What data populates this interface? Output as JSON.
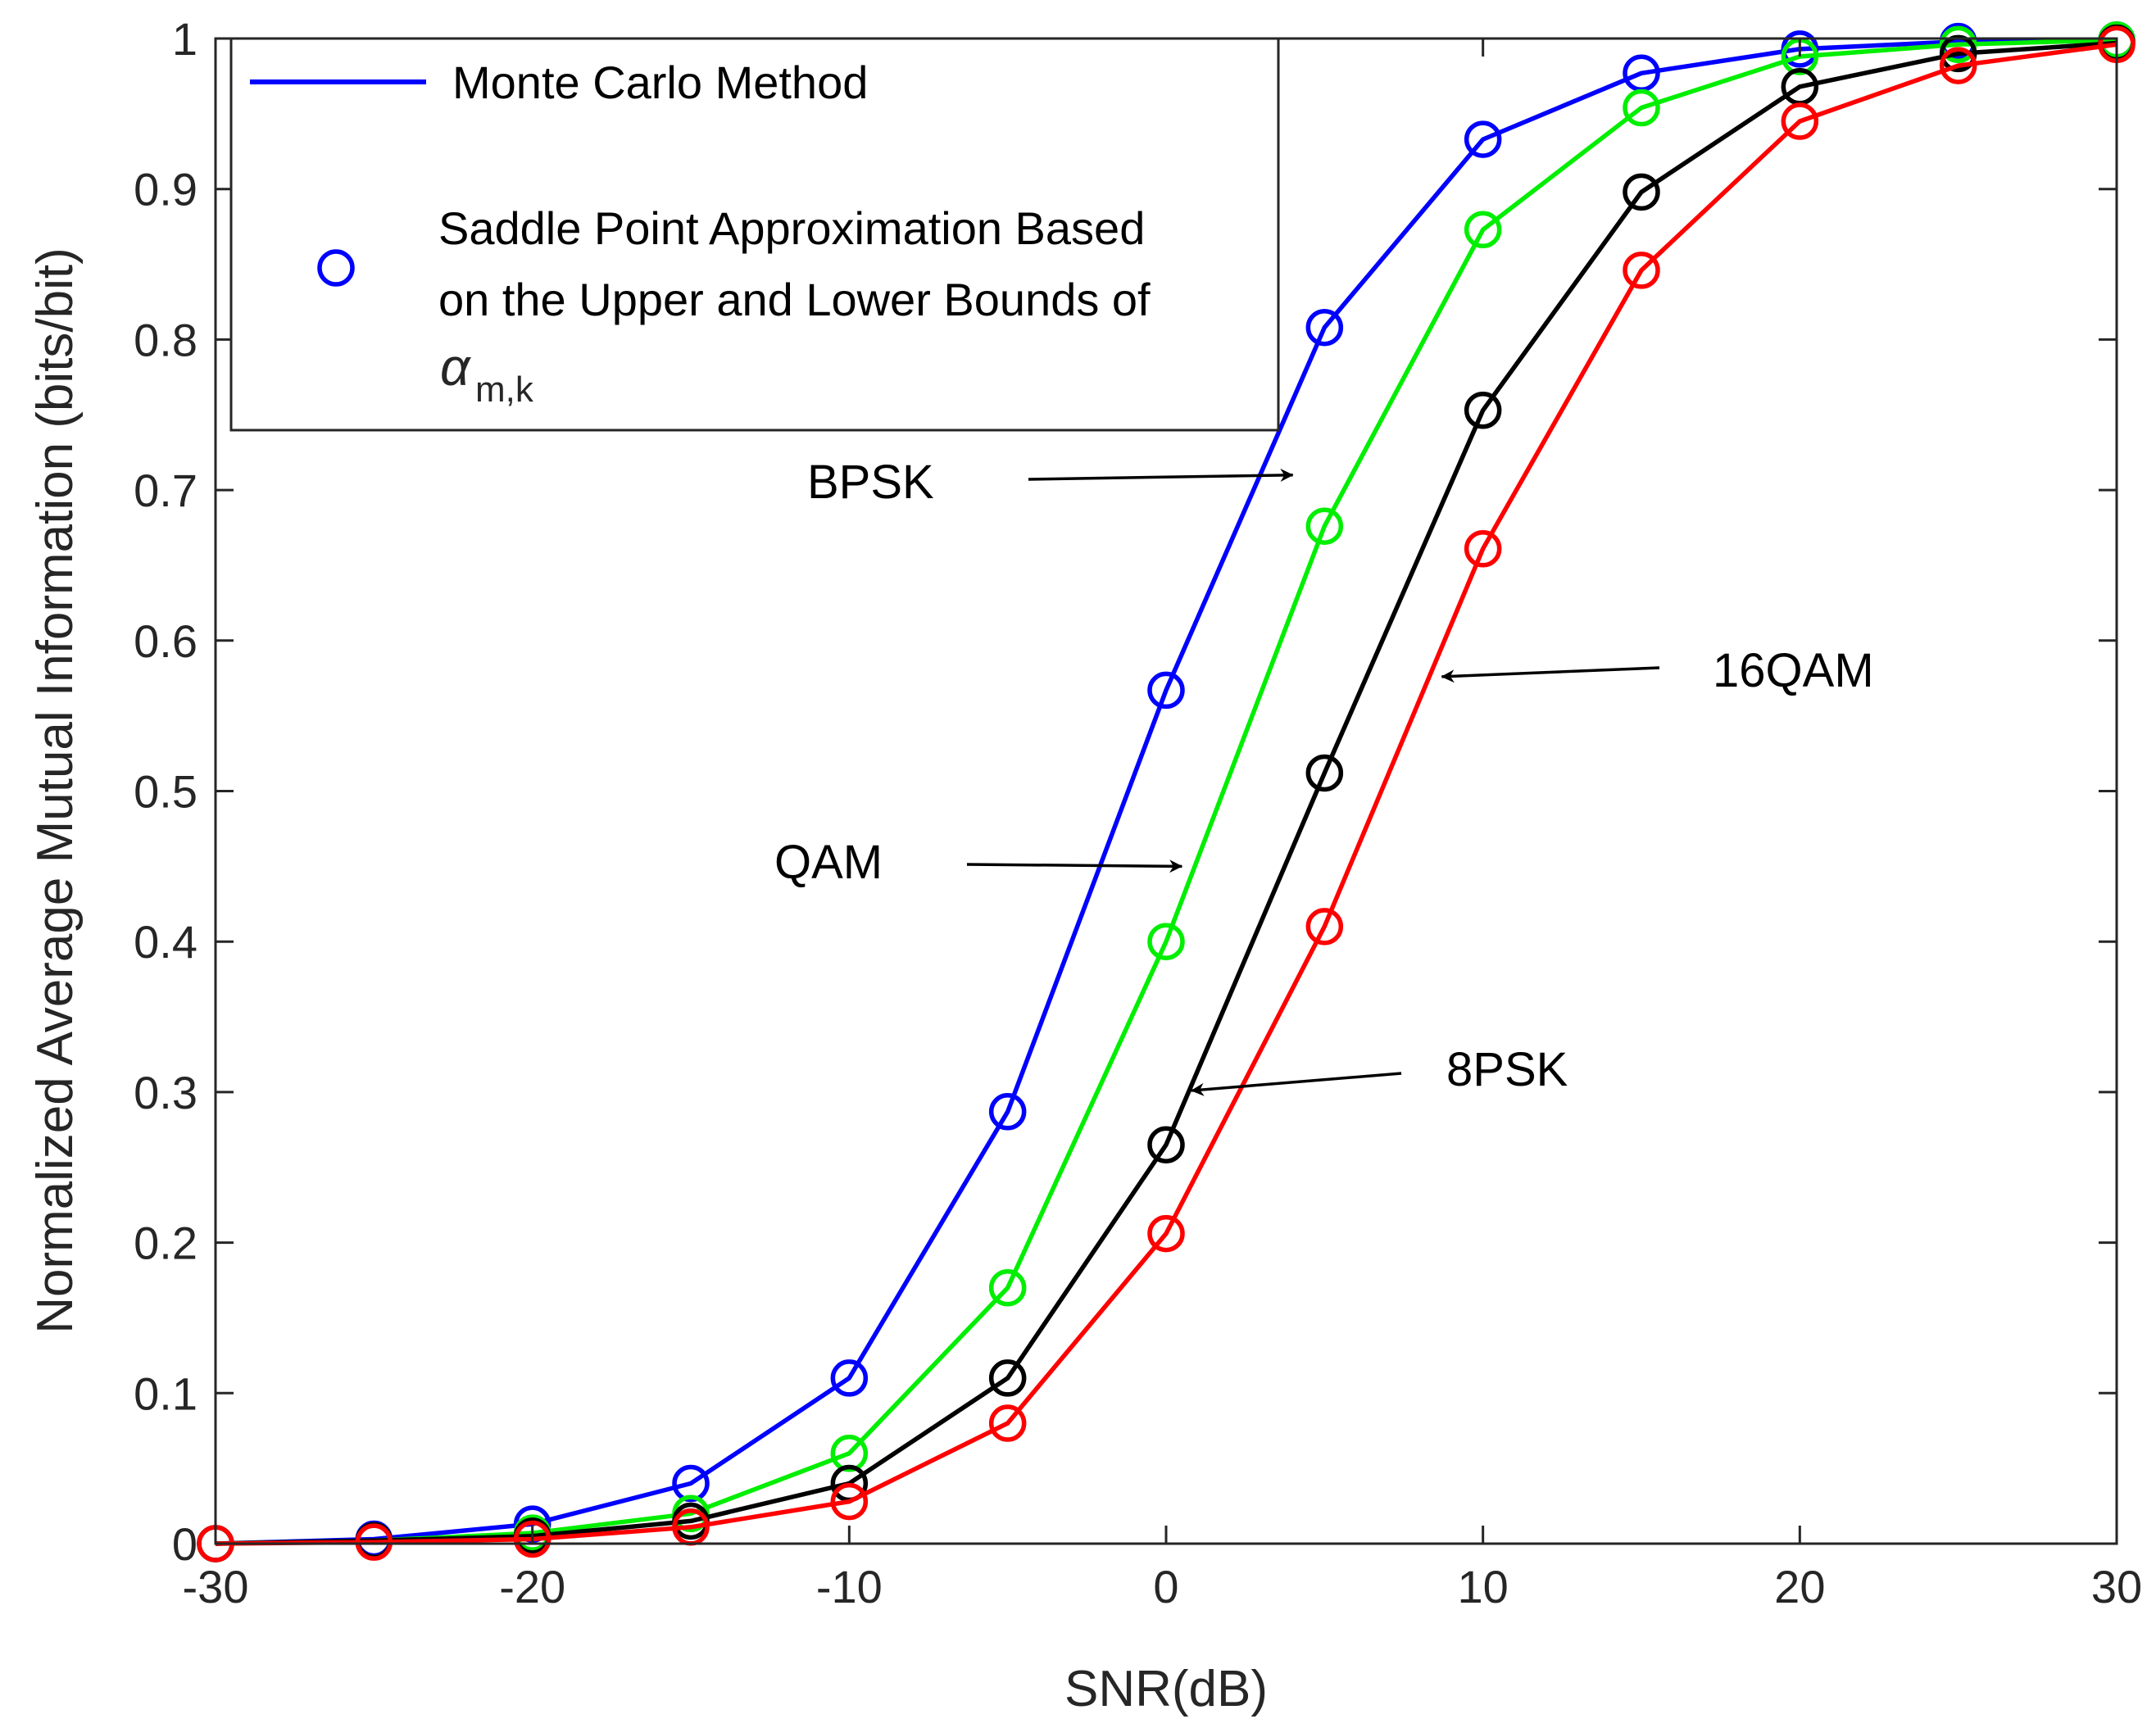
{
  "chart_data": {
    "type": "line",
    "xlabel": "SNR(dB)",
    "ylabel": "Normalized Average Mutual Information (bits/bit)",
    "xlim": [
      -30,
      30
    ],
    "ylim": [
      0,
      1
    ],
    "xticks": [
      -30,
      -20,
      -10,
      0,
      10,
      20,
      30
    ],
    "yticks": [
      0,
      0.1,
      0.2,
      0.3,
      0.4,
      0.5,
      0.6,
      0.7,
      0.8,
      0.9,
      1
    ],
    "x": [
      -30,
      -25,
      -20,
      -15,
      -10,
      -5,
      0,
      5,
      10,
      15,
      20,
      25,
      30
    ],
    "series": [
      {
        "name": "BPSK",
        "color": "#0000ff",
        "values": [
          0.0,
          0.003,
          0.013,
          0.04,
          0.11,
          0.287,
          0.567,
          0.808,
          0.933,
          0.977,
          0.993,
          0.998,
          0.999
        ]
      },
      {
        "name": "QAM",
        "color": "#00ee00",
        "values": [
          0.0,
          0.002,
          0.007,
          0.02,
          0.06,
          0.17,
          0.4,
          0.676,
          0.873,
          0.954,
          0.988,
          0.996,
          0.999
        ]
      },
      {
        "name": "8PSK",
        "color": "#000000",
        "values": [
          0.0,
          0.002,
          0.005,
          0.015,
          0.04,
          0.11,
          0.265,
          0.512,
          0.753,
          0.898,
          0.968,
          0.99,
          0.997
        ]
      },
      {
        "name": "16QAM",
        "color": "#ff0000",
        "values": [
          0.0,
          0.001,
          0.003,
          0.011,
          0.028,
          0.08,
          0.206,
          0.41,
          0.661,
          0.846,
          0.945,
          0.982,
          0.996
        ]
      }
    ],
    "legend": {
      "position": "top-left",
      "entries": [
        {
          "label": "Monte Carlo Method",
          "marker": "line",
          "color": "#0000ff"
        },
        {
          "label_lines": [
            "Saddle Point Approximation Based",
            "on the Upper and Lower Bounds of"
          ],
          "math_symbol": "α",
          "math_subscript": "m,k",
          "marker": "circle",
          "color": "#0000ff"
        }
      ]
    },
    "annotations": [
      {
        "text": "BPSK",
        "points_to": [
          4,
          0.71
        ]
      },
      {
        "text": "QAM",
        "points_to": [
          0.5,
          0.45
        ]
      },
      {
        "text": "8PSK",
        "points_to": [
          0.8,
          0.301
        ]
      },
      {
        "text": "16QAM",
        "points_to": [
          8.7,
          0.576
        ]
      }
    ]
  }
}
